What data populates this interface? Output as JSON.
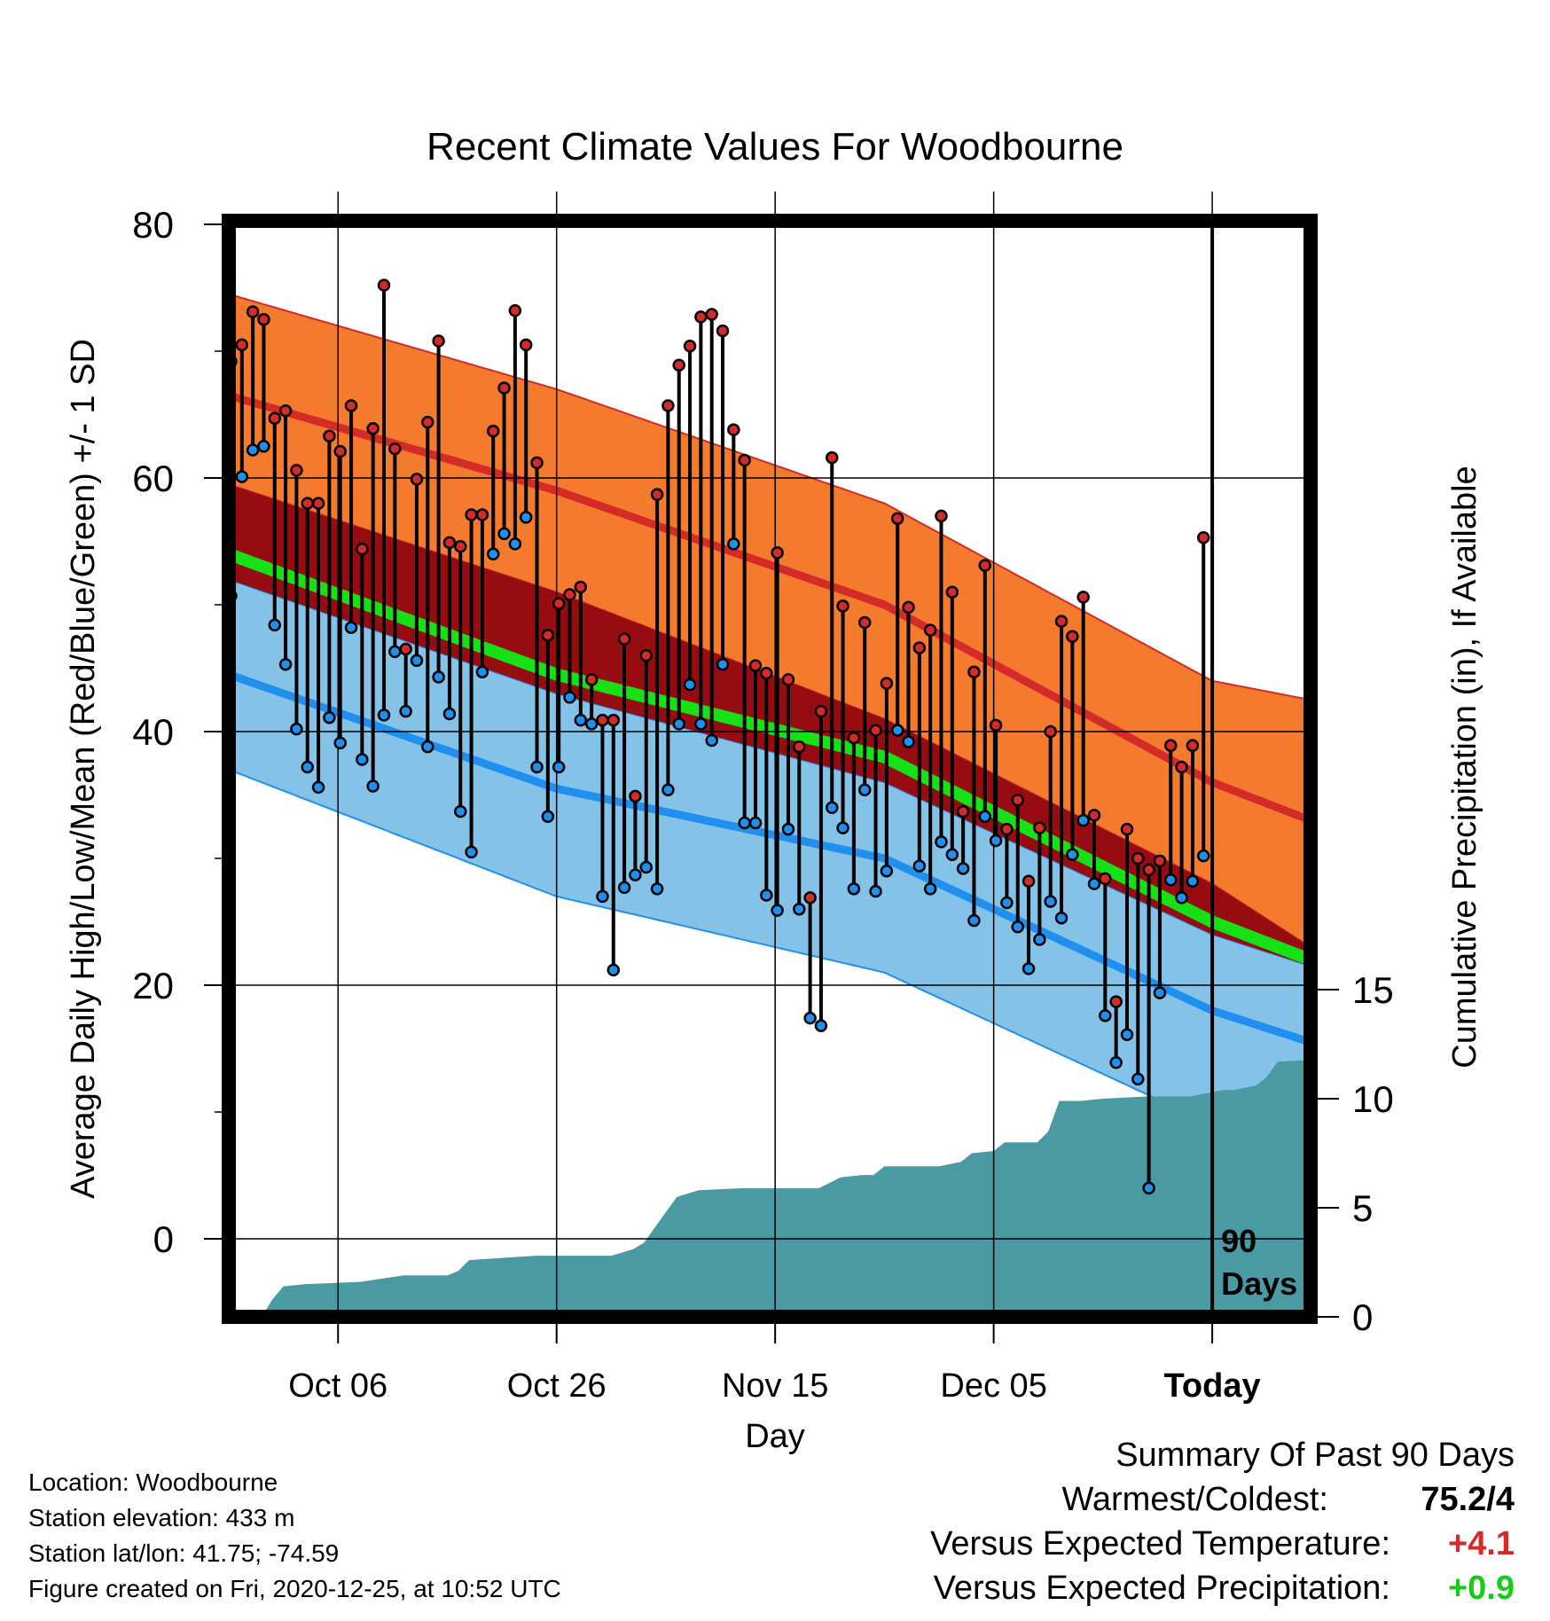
{
  "chart_data": {
    "type": "line",
    "title": "Recent Climate Values For Woodbourne",
    "xlabel": "Day",
    "ylabel": "Average Daily High/Low/Mean (Red/Blue/Green) +/- 1 SD",
    "y2label": "Cumulative Precipitation (in), If Available",
    "ylim": [
      -6,
      80
    ],
    "y2lim": [
      0,
      20
    ],
    "yticks": [
      "0",
      "20",
      "40",
      "60",
      "80"
    ],
    "y2ticks": [
      "0",
      "5",
      "10",
      "15"
    ],
    "xticks": [
      "Oct 06",
      "Oct 26",
      "Nov 15",
      "Dec 05",
      "Today"
    ],
    "xrange_days": [
      -90,
      9
    ],
    "today_label_line1": "90",
    "today_label_line2": "Days",
    "grid": true,
    "normals": {
      "high_mean": [
        [
          -90,
          66.5
        ],
        [
          -60,
          59
        ],
        [
          -30,
          50
        ],
        [
          0,
          36
        ],
        [
          9,
          33
        ]
      ],
      "high_sd_upper": [
        [
          -90,
          74.5
        ],
        [
          -60,
          67
        ],
        [
          -30,
          58
        ],
        [
          0,
          44
        ],
        [
          9,
          42.5
        ]
      ],
      "high_sd_lower": [
        [
          -90,
          59.5
        ],
        [
          -60,
          51
        ],
        [
          -30,
          41
        ],
        [
          0,
          28
        ],
        [
          9,
          23
        ]
      ],
      "low_mean": [
        [
          -90,
          44.5
        ],
        [
          -60,
          35.5
        ],
        [
          -30,
          30
        ],
        [
          0,
          18
        ],
        [
          9,
          15.5
        ]
      ],
      "low_sd_upper": [
        [
          -90,
          52
        ],
        [
          -60,
          43
        ],
        [
          -30,
          36
        ],
        [
          0,
          24
        ],
        [
          9,
          21.5
        ]
      ],
      "low_sd_lower": [
        [
          -90,
          37
        ],
        [
          -60,
          27
        ],
        [
          -30,
          21
        ],
        [
          0,
          9
        ],
        [
          9,
          4.5
        ]
      ],
      "mean_normal": [
        [
          -90,
          54
        ],
        [
          -60,
          44.5
        ],
        [
          -30,
          38
        ],
        [
          0,
          25
        ],
        [
          9,
          22
        ]
      ]
    },
    "series": [
      {
        "name": "High",
        "values": [
          69.2,
          70.5,
          73.1,
          72.5,
          64.7,
          65.3,
          60.6,
          58.0,
          58.0,
          63.3,
          62.1,
          65.7,
          54.4,
          63.9,
          75.2,
          62.3,
          46.5,
          59.9,
          64.4,
          70.8,
          54.9,
          54.6,
          57.1,
          57.1,
          63.7,
          67.1,
          73.2,
          70.5,
          61.2,
          47.6,
          50.1,
          50.8,
          51.4,
          44.1,
          40.9,
          40.9,
          47.3,
          34.9,
          46.0,
          58.7,
          65.7,
          68.9,
          70.4,
          72.7,
          72.9,
          71.6,
          63.8,
          61.4,
          45.2,
          44.6,
          54.1,
          44.1,
          38.8,
          26.9,
          41.6,
          61.6,
          49.9,
          39.5,
          48.6,
          40.1,
          43.8,
          56.8,
          49.8,
          46.6,
          48.0,
          57.0,
          51.0,
          33.7,
          44.7,
          53.1,
          40.5,
          32.3,
          34.6,
          28.2,
          32.4,
          40.0,
          48.7,
          47.5,
          50.6,
          33.4,
          28.4,
          18.7,
          32.3,
          30.0,
          29.1,
          29.8,
          38.9,
          37.2,
          38.9,
          55.3
        ]
      },
      {
        "name": "Low",
        "values": [
          50.7,
          60.1,
          62.2,
          62.5,
          48.4,
          45.3,
          40.2,
          37.2,
          35.6,
          41.1,
          39.1,
          48.2,
          37.8,
          35.7,
          41.3,
          46.3,
          41.6,
          45.6,
          38.8,
          44.3,
          41.4,
          33.7,
          30.5,
          44.7,
          54.0,
          55.6,
          54.8,
          56.9,
          37.2,
          33.3,
          37.2,
          42.7,
          40.9,
          40.6,
          27.0,
          21.2,
          27.7,
          28.7,
          29.3,
          27.6,
          35.4,
          40.6,
          43.7,
          40.6,
          39.3,
          45.3,
          54.8,
          32.8,
          32.8,
          27.1,
          25.9,
          32.3,
          26.0,
          17.4,
          16.8,
          34.0,
          32.4,
          27.6,
          35.4,
          27.4,
          29.0,
          40.1,
          39.2,
          29.4,
          27.6,
          31.3,
          30.3,
          29.2,
          25.1,
          33.3,
          31.4,
          26.5,
          24.6,
          21.3,
          23.6,
          26.6,
          25.3,
          30.3,
          33.0,
          28.0,
          17.6,
          13.9,
          16.1,
          12.6,
          4.0,
          19.4,
          28.3,
          26.9,
          28.2,
          30.2
        ]
      }
    ],
    "cumulative_precipitation": [
      [
        -90,
        0
      ],
      [
        -87,
        0
      ],
      [
        -86,
        0.8
      ],
      [
        -85,
        1.4
      ],
      [
        -83,
        1.5
      ],
      [
        -78,
        1.6
      ],
      [
        -74,
        1.9
      ],
      [
        -70,
        1.9
      ],
      [
        -69,
        2.1
      ],
      [
        -68,
        2.6
      ],
      [
        -62,
        2.8
      ],
      [
        -55,
        2.8
      ],
      [
        -53,
        3.1
      ],
      [
        -52,
        3.4
      ],
      [
        -51,
        4.1
      ],
      [
        -49,
        5.5
      ],
      [
        -47,
        5.8
      ],
      [
        -43,
        5.9
      ],
      [
        -36,
        5.9
      ],
      [
        -34,
        6.4
      ],
      [
        -32,
        6.5
      ],
      [
        -31,
        6.5
      ],
      [
        -30,
        6.9
      ],
      [
        -25,
        6.9
      ],
      [
        -23,
        7.1
      ],
      [
        -22,
        7.5
      ],
      [
        -20,
        7.6
      ],
      [
        -19,
        8.0
      ],
      [
        -16,
        8.0
      ],
      [
        -15,
        8.5
      ],
      [
        -14,
        9.9
      ],
      [
        -12,
        9.9
      ],
      [
        -10,
        10.0
      ],
      [
        -6,
        10.1
      ],
      [
        -2,
        10.1
      ],
      [
        0,
        10.3
      ],
      [
        1,
        10.4
      ],
      [
        2,
        10.4
      ],
      [
        4,
        10.6
      ],
      [
        5,
        11.0
      ],
      [
        6,
        11.7
      ],
      [
        10,
        11.8
      ],
      [
        10,
        11.8
      ],
      [
        11,
        12.6
      ],
      [
        12,
        13.0
      ],
      [
        13,
        13.0
      ],
      [
        22,
        13.0
      ],
      [
        23,
        13.0
      ]
    ],
    "colors": {
      "high_band": "#f47a2e",
      "high_line": "#d42a28",
      "low_band": "#85c2e8",
      "low_line": "#1f8ff0",
      "mean_line": "#16e016",
      "overlap_band": "#960c10",
      "precip_fill": "#4a9aa4",
      "high_marker": "#d42a28",
      "low_marker": "#1f8ff0"
    }
  },
  "footer": {
    "location": "Location: Woodbourne",
    "elevation": "Station elevation: 433 m",
    "latlon": "Station lat/lon: 41.75; -74.59",
    "created": "Figure created on Fri, 2020-12-25, at 10:52 UTC"
  },
  "summary": {
    "title": "Summary Of Past 90 Days",
    "warm_cold_label": "Warmest/Coldest:",
    "warm_cold_value": "75.2/4",
    "temp_label": "Versus Expected Temperature:",
    "temp_value": "+4.1",
    "temp_color": "#d42a28",
    "precip_label": "Versus Expected Precipitation:",
    "precip_value": "+0.9",
    "precip_color": "#16cc16"
  }
}
